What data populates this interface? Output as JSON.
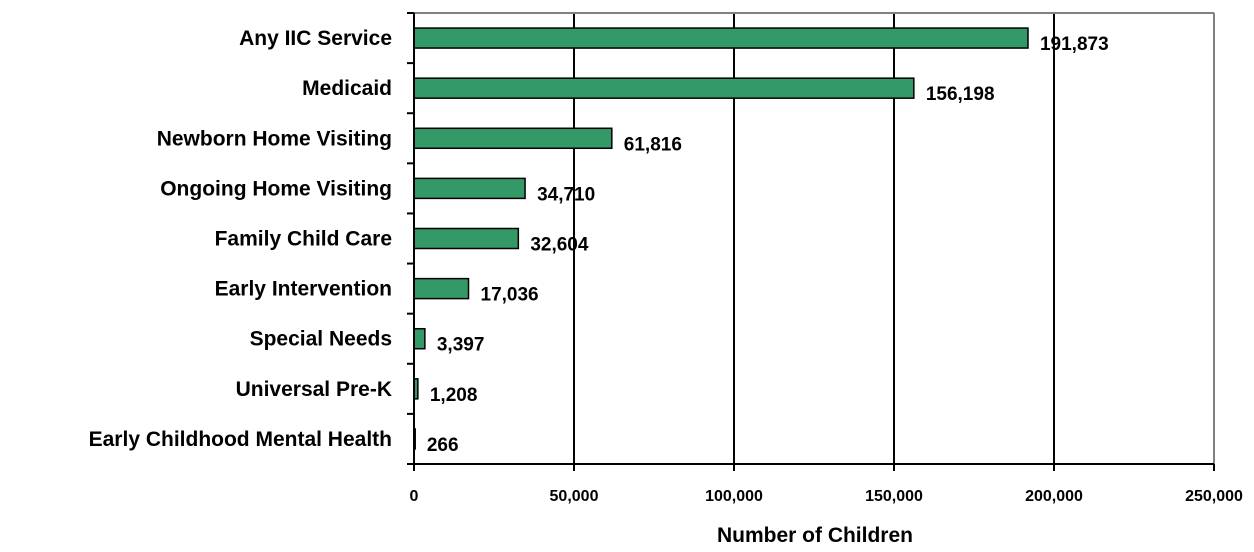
{
  "chart_data": {
    "type": "bar",
    "orientation": "horizontal",
    "categories": [
      "Any IIC Service",
      "Medicaid",
      "Newborn Home Visiting",
      "Ongoing Home Visiting",
      "Family Child Care",
      "Early Intervention",
      "Special Needs",
      "Universal Pre-K",
      "Early Childhood Mental Health"
    ],
    "values": [
      191873,
      156198,
      61816,
      34710,
      32604,
      17036,
      3397,
      1208,
      266
    ],
    "data_labels": [
      "191,873",
      "156,198",
      "61,816",
      "34,710",
      "32,604",
      "17,036",
      "3,397",
      "1,208",
      "266"
    ],
    "xlabel": "Number of Children",
    "ylabel": "",
    "title": "",
    "xlim": [
      0,
      250000
    ],
    "xticks": [
      0,
      50000,
      100000,
      150000,
      200000,
      250000
    ],
    "xtick_labels": [
      "0",
      "50,000",
      "100,000",
      "150,000",
      "200,000",
      "250,000"
    ],
    "grid": "vertical major gridlines",
    "legend": "none",
    "colors": {
      "bar_fill": "#339966",
      "bar_stroke": "#000000",
      "grid": "#000000",
      "frame": "#808080"
    }
  }
}
